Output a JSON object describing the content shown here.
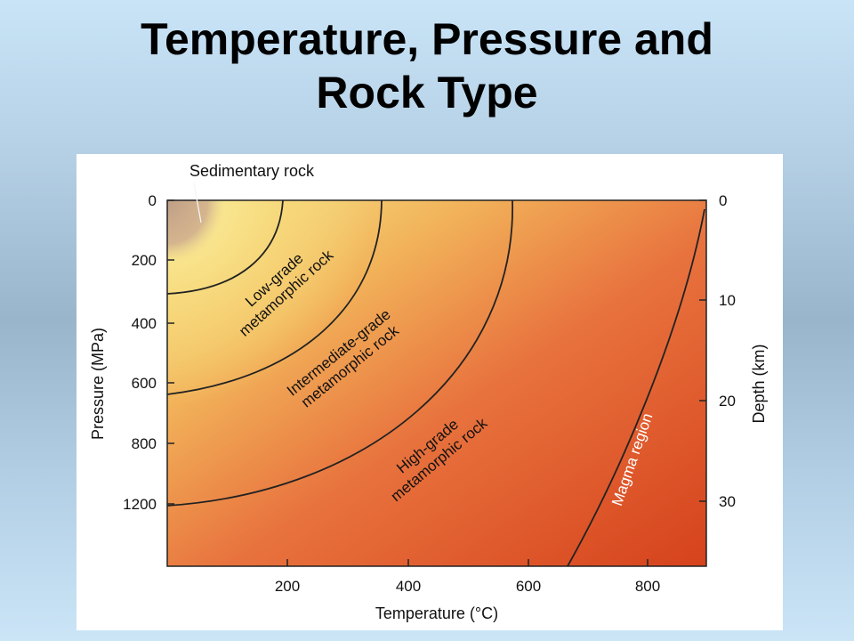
{
  "slide": {
    "title_line1": "Temperature, Pressure and",
    "title_line2": "Rock Type"
  },
  "chart_data": {
    "type": "diagram",
    "xlabel": "Temperature (°C)",
    "ylabel_left": "Pressure (MPa)",
    "ylabel_right": "Depth (km)",
    "x_ticks": [
      "200",
      "400",
      "600",
      "800"
    ],
    "pressure_ticks": [
      "0",
      "200",
      "400",
      "600",
      "800",
      "1200"
    ],
    "depth_ticks": [
      "0",
      "10",
      "20",
      "30"
    ],
    "regions": [
      {
        "name": "Sedimentary rock"
      },
      {
        "name_line1": "Low-grade",
        "name_line2": "metamorphic rock"
      },
      {
        "name_line1": "Intermediate-grade",
        "name_line2": "metamorphic rock"
      },
      {
        "name_line1": "High-grade",
        "name_line2": "metamorphic rock"
      },
      {
        "name": "Magma region"
      }
    ],
    "colors": {
      "low_temperature": "#f8e58a",
      "high_temperature": "#d9461e",
      "sedimentary": "#c9a98a",
      "boundary": "#222222"
    }
  }
}
